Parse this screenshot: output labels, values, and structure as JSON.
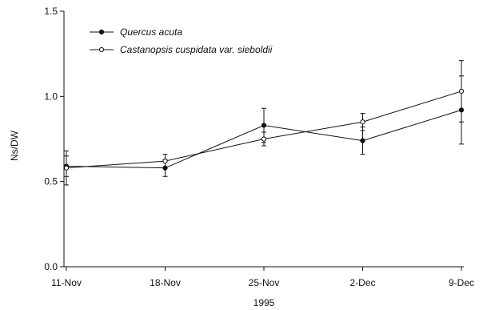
{
  "chart_data": {
    "type": "line",
    "xlabel": "1995",
    "ylabel": "Ns/DW",
    "categories": [
      "11-Nov",
      "18-Nov",
      "25-Nov",
      "2-Dec",
      "9-Dec"
    ],
    "ylim": [
      0.0,
      1.5
    ],
    "yticks": [
      "0.0",
      "0.5",
      "1.0",
      "1.5"
    ],
    "grid": false,
    "legend_position": "top-left",
    "series": [
      {
        "name": "Quercus acuta",
        "marker": "filled-circle",
        "values": [
          0.59,
          0.58,
          0.83,
          0.74,
          0.92
        ],
        "errors": [
          0.06,
          0.05,
          0.1,
          0.08,
          0.2
        ]
      },
      {
        "name": "Castanopsis cuspidata var. sieboldii",
        "marker": "open-circle",
        "values": [
          0.58,
          0.62,
          0.75,
          0.85,
          1.03
        ],
        "errors": [
          0.1,
          0.04,
          0.04,
          0.05,
          0.18
        ]
      }
    ]
  }
}
